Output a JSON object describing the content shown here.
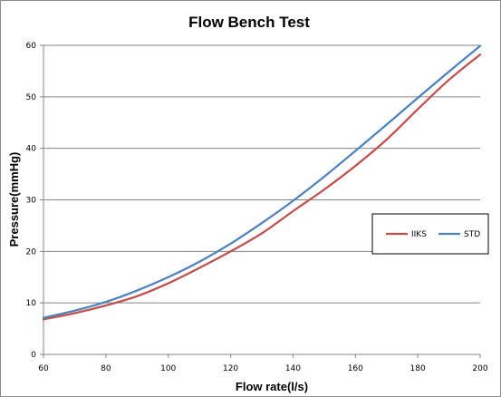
{
  "chart_data": {
    "type": "line",
    "title": "Flow Bench Test",
    "xlabel": "Flow rate(l/s)",
    "ylabel": "Pressure(mmHg)",
    "xlim": [
      60,
      200
    ],
    "ylim": [
      0,
      60
    ],
    "x_ticks": [
      "60",
      "80",
      "100",
      "120",
      "140",
      "160",
      "180",
      "200"
    ],
    "y_ticks": [
      "0",
      "10",
      "20",
      "30",
      "40",
      "50",
      "60"
    ],
    "grid": "horizontal",
    "legend_position": "right",
    "series": [
      {
        "name": "IIKS",
        "color": "#c0504d",
        "x": [
          60,
          70,
          80,
          90,
          100,
          110,
          120,
          130,
          140,
          150,
          160,
          170,
          180,
          190,
          200
        ],
        "y": [
          6.8,
          8.0,
          9.5,
          11.3,
          13.8,
          16.8,
          20.0,
          23.5,
          27.8,
          32.0,
          36.6,
          41.7,
          47.6,
          53.3,
          58.2
        ]
      },
      {
        "name": "STD",
        "color": "#4f81bd",
        "x": [
          60,
          70,
          80,
          90,
          100,
          110,
          120,
          130,
          140,
          150,
          160,
          170,
          180,
          190,
          200
        ],
        "y": [
          7.1,
          8.5,
          10.2,
          12.4,
          15.0,
          18.0,
          21.5,
          25.5,
          29.8,
          34.5,
          39.5,
          44.6,
          49.8,
          54.9,
          59.9
        ]
      }
    ]
  }
}
